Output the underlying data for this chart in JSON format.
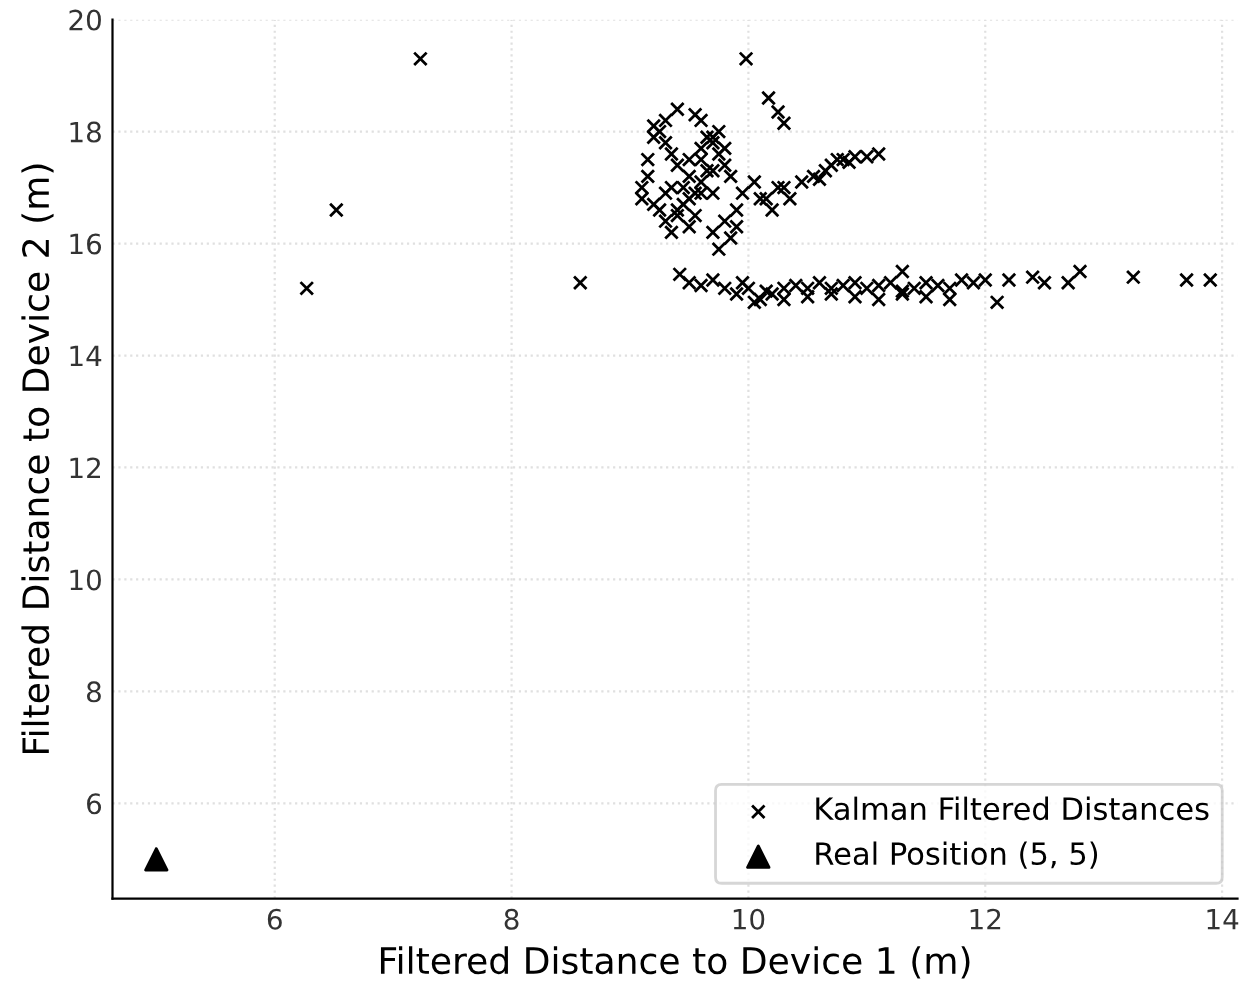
{
  "chart_data": {
    "type": "scatter",
    "xlabel": "Filtered Distance to Device 1 (m)",
    "ylabel": "Filtered Distance to Device 2 (m)",
    "xlim": [
      4.63,
      14.13
    ],
    "ylim": [
      4.3,
      20
    ],
    "xticks": [
      6,
      8,
      10,
      12,
      14
    ],
    "yticks": [
      6,
      8,
      10,
      12,
      14,
      16,
      18,
      20
    ],
    "grid": true,
    "legend": "bottom right",
    "series": [
      {
        "name": "Kalman Filtered Distances",
        "color": "#000000",
        "marker": "cross",
        "x": [
          6.27,
          6.52,
          7.23,
          8.58,
          9.98,
          10.17,
          10.25,
          10.3,
          9.1,
          9.15,
          9.2,
          9.25,
          9.3,
          9.35,
          9.4,
          9.45,
          9.5,
          9.55,
          9.6,
          9.65,
          9.7,
          9.75,
          9.1,
          9.2,
          9.3,
          9.4,
          9.5,
          9.6,
          9.7,
          9.8,
          9.15,
          9.25,
          9.35,
          9.45,
          9.55,
          9.65,
          9.75,
          9.85,
          9.2,
          9.3,
          9.4,
          9.5,
          9.6,
          9.7,
          9.3,
          9.35,
          9.4,
          9.5,
          9.55,
          9.6,
          9.7,
          9.8,
          9.9,
          9.75,
          9.85,
          9.9,
          9.6,
          9.7,
          9.8,
          9.95,
          10.05,
          10.15,
          10.25,
          10.35,
          10.45,
          10.55,
          10.6,
          10.65,
          10.7,
          10.75,
          10.8,
          10.85,
          10.9,
          11.0,
          11.1,
          10.2,
          10.3,
          10.1,
          9.42,
          9.5,
          9.6,
          9.7,
          9.8,
          9.9,
          9.95,
          10.0,
          10.05,
          10.1,
          10.15,
          10.2,
          10.3,
          10.4,
          10.5,
          10.6,
          10.7,
          10.8,
          10.9,
          11.0,
          11.1,
          11.2,
          11.3,
          11.4,
          11.5,
          11.6,
          11.7,
          10.3,
          10.5,
          10.7,
          10.9,
          11.1,
          11.3,
          11.5,
          11.7,
          11.8,
          11.9,
          12.0,
          12.1,
          12.2,
          12.4,
          12.5,
          12.7,
          12.8,
          13.25,
          13.7,
          13.9,
          11.3
        ],
        "values": [
          15.2,
          16.6,
          19.3,
          15.3,
          19.3,
          18.6,
          18.35,
          18.15,
          16.8,
          17.2,
          17.9,
          18.0,
          18.2,
          17.6,
          18.4,
          17.0,
          17.5,
          18.3,
          17.7,
          17.9,
          17.3,
          18.0,
          17.0,
          16.7,
          16.9,
          16.5,
          16.8,
          17.1,
          16.9,
          17.4,
          17.5,
          16.6,
          17.0,
          16.7,
          16.9,
          17.3,
          17.6,
          17.2,
          18.1,
          17.8,
          17.4,
          17.2,
          17.5,
          17.8,
          16.4,
          16.2,
          16.6,
          16.3,
          16.5,
          16.9,
          16.2,
          16.4,
          16.3,
          15.9,
          16.1,
          16.6,
          18.2,
          17.9,
          17.7,
          16.9,
          17.1,
          16.8,
          17.0,
          16.8,
          17.1,
          17.2,
          17.15,
          17.3,
          17.4,
          17.5,
          17.5,
          17.45,
          17.55,
          17.55,
          17.6,
          16.6,
          17.0,
          16.8,
          15.45,
          15.3,
          15.25,
          15.35,
          15.2,
          15.1,
          15.3,
          15.2,
          14.95,
          15.0,
          15.15,
          15.1,
          15.2,
          15.25,
          15.2,
          15.3,
          15.2,
          15.25,
          15.3,
          15.2,
          15.25,
          15.3,
          15.15,
          15.2,
          15.3,
          15.25,
          15.2,
          15.0,
          15.05,
          15.1,
          15.05,
          15.0,
          15.1,
          15.05,
          15.0,
          15.35,
          15.3,
          15.35,
          14.95,
          15.35,
          15.4,
          15.3,
          15.3,
          15.5,
          15.4,
          15.35,
          15.35,
          15.5
        ]
      },
      {
        "name": "Real Position (5, 5)",
        "color": "#000000",
        "marker": "triangle",
        "x": [
          5
        ],
        "values": [
          5
        ]
      }
    ]
  }
}
